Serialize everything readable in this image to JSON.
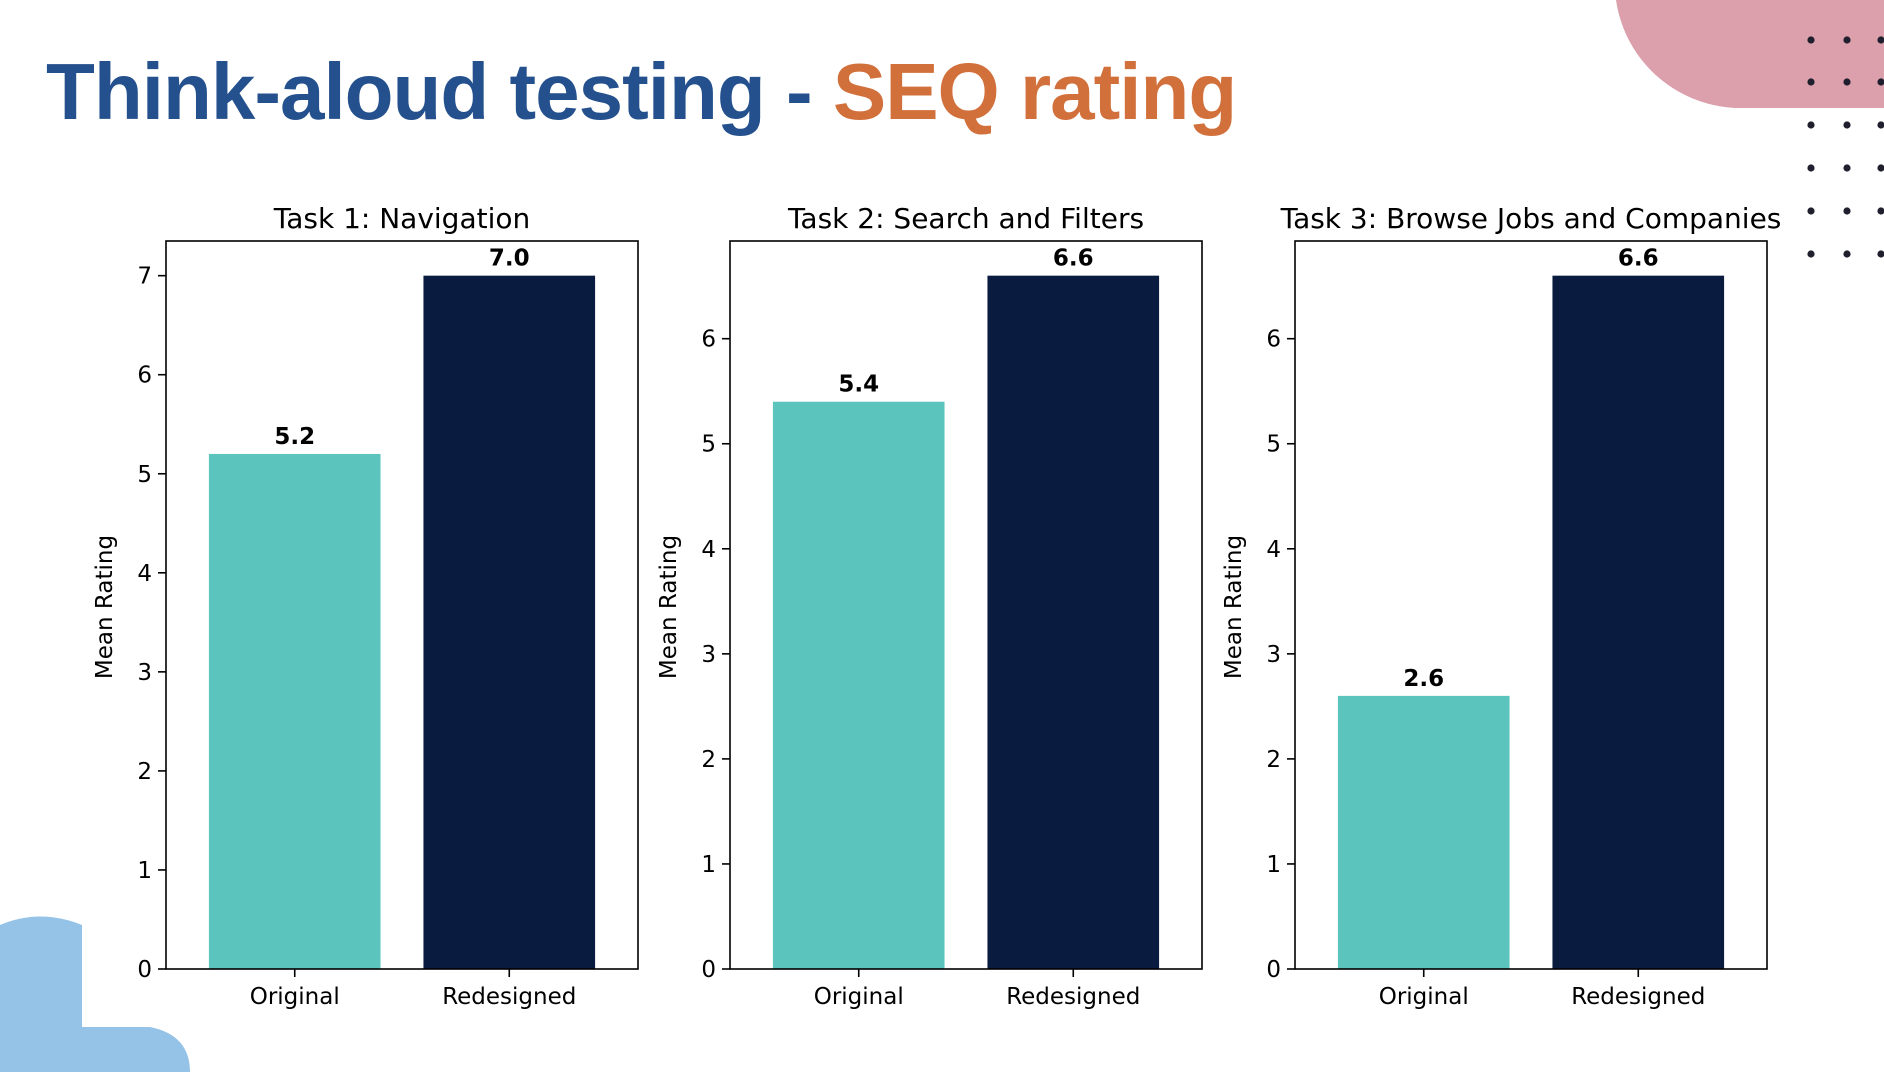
{
  "slide": {
    "title_part1": "Think-aloud testing - ",
    "title_part2": "SEQ rating",
    "title_color1": "#24508d",
    "title_color2": "#d2703b",
    "decor_pink": "#dba0ac",
    "decor_blue": "#94c3e7",
    "decor_dots": "#1f1f2e"
  },
  "chart_data": [
    {
      "type": "bar",
      "title": "Task 1: Navigation",
      "categories": [
        "Original",
        "Redesigned"
      ],
      "values": [
        5.2,
        7.0
      ],
      "value_labels": [
        "5.2",
        "7.0"
      ],
      "ylabel": "Mean Rating",
      "ylim": [
        0,
        7.35
      ],
      "yticks": [
        0,
        1,
        2,
        3,
        4,
        5,
        6,
        7
      ],
      "colors": [
        "#5bc4bd",
        "#091c3f"
      ],
      "grid": false
    },
    {
      "type": "bar",
      "title": "Task 2: Search and Filters",
      "categories": [
        "Original",
        "Redesigned"
      ],
      "values": [
        5.4,
        6.6
      ],
      "value_labels": [
        "5.4",
        "6.6"
      ],
      "ylabel": "Mean Rating",
      "ylim": [
        0,
        6.93
      ],
      "yticks": [
        0,
        1,
        2,
        3,
        4,
        5,
        6
      ],
      "colors": [
        "#5bc4bd",
        "#091c3f"
      ],
      "grid": false
    },
    {
      "type": "bar",
      "title": "Task 3: Browse Jobs and Companies",
      "categories": [
        "Original",
        "Redesigned"
      ],
      "values": [
        2.6,
        6.6
      ],
      "value_labels": [
        "2.6",
        "6.6"
      ],
      "ylabel": "Mean Rating",
      "ylim": [
        0,
        6.93
      ],
      "yticks": [
        0,
        1,
        2,
        3,
        4,
        5,
        6
      ],
      "colors": [
        "#5bc4bd",
        "#091c3f"
      ],
      "grid": false
    }
  ]
}
